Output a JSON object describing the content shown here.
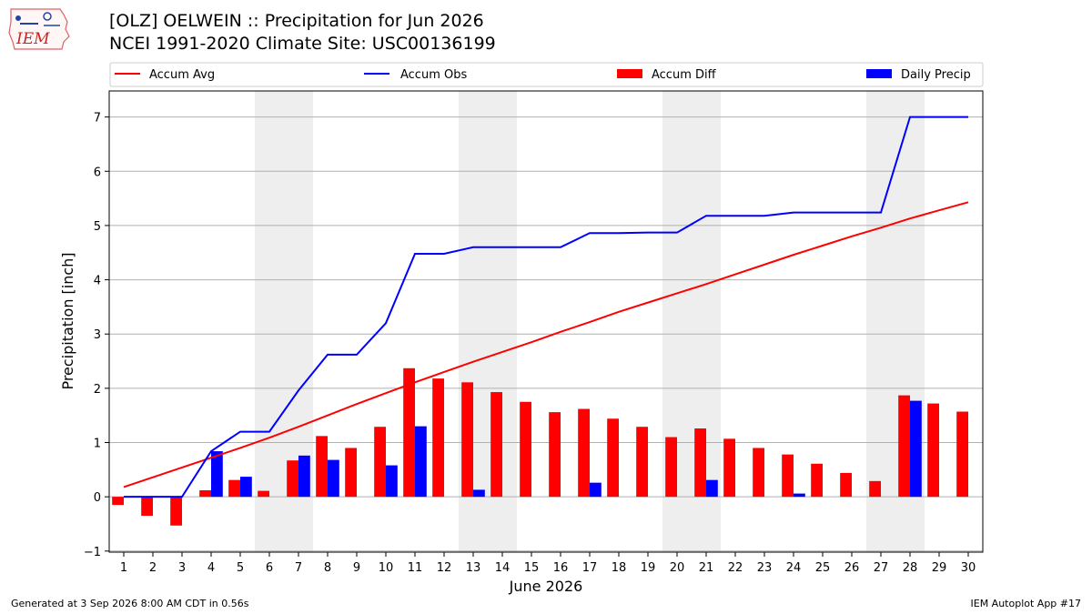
{
  "header": {
    "title_line1": "[OLZ] OELWEIN :: Precipitation for Jun 2026",
    "title_line2": "NCEI 1991-2020 Climate Site: USC00136199"
  },
  "logo": {
    "text": "IEM",
    "icon": "iowa-map-weather-icon"
  },
  "footer": {
    "generated": "Generated at 3 Sep 2026 8:00 AM CDT in 0.56s",
    "app": "IEM Autoplot App #17"
  },
  "colors": {
    "accum_avg": "#ff0000",
    "accum_obs": "#0000ff",
    "accum_diff": "#ff0000",
    "daily_precip": "#0000ff",
    "weekend_band": "#eeeeee",
    "grid": "#b0b0b0"
  },
  "chart_data": {
    "type": "bar",
    "title": "[OLZ] OELWEIN :: Precipitation for Jun 2026",
    "xlabel": "June 2026",
    "ylabel": "Precipitation [inch]",
    "ylim": [
      -1.02,
      7.48
    ],
    "yticks": [
      -1,
      0,
      1,
      2,
      3,
      4,
      5,
      6,
      7
    ],
    "ytick_labels": [
      "−1",
      "0",
      "1",
      "2",
      "3",
      "4",
      "5",
      "6",
      "7"
    ],
    "x": [
      1,
      2,
      3,
      4,
      5,
      6,
      7,
      8,
      9,
      10,
      11,
      12,
      13,
      14,
      15,
      16,
      17,
      18,
      19,
      20,
      21,
      22,
      23,
      24,
      25,
      26,
      27,
      28,
      29,
      30
    ],
    "grid": "horizontal",
    "legend_placement": "top",
    "weekend_bands": [
      [
        6,
        7
      ],
      [
        13,
        14
      ],
      [
        20,
        21
      ],
      [
        27,
        28
      ]
    ],
    "series": [
      {
        "name": "Accum Avg",
        "kind": "line",
        "values": [
          0.18,
          0.36,
          0.54,
          0.72,
          0.9,
          1.09,
          1.29,
          1.5,
          1.71,
          1.91,
          2.11,
          2.3,
          2.49,
          2.67,
          2.85,
          3.04,
          3.22,
          3.41,
          3.58,
          3.75,
          3.92,
          4.1,
          4.28,
          4.46,
          4.63,
          4.8,
          4.96,
          5.13,
          5.28,
          5.43
        ]
      },
      {
        "name": "Accum Obs",
        "kind": "line",
        "values": [
          0.0,
          0.0,
          0.0,
          0.84,
          1.2,
          1.2,
          1.96,
          2.62,
          2.62,
          3.2,
          4.48,
          4.48,
          4.6,
          4.6,
          4.6,
          4.6,
          4.86,
          4.86,
          4.87,
          4.87,
          5.18,
          5.18,
          5.18,
          5.24,
          5.24,
          5.24,
          5.24,
          7.0,
          7.0,
          7.0
        ]
      },
      {
        "name": "Accum Diff",
        "kind": "bar",
        "values": [
          -0.15,
          -0.35,
          -0.53,
          0.12,
          0.31,
          0.11,
          0.67,
          1.12,
          0.9,
          1.29,
          2.37,
          2.18,
          2.11,
          1.93,
          1.75,
          1.56,
          1.62,
          1.44,
          1.29,
          1.1,
          1.26,
          1.07,
          0.9,
          0.78,
          0.61,
          0.44,
          0.29,
          1.87,
          1.72,
          1.57
        ]
      },
      {
        "name": "Daily Precip",
        "kind": "bar",
        "values": [
          0,
          0,
          0,
          0.84,
          0.37,
          0,
          0.76,
          0.68,
          0,
          0.58,
          1.3,
          0,
          0.13,
          0,
          0,
          0,
          0.26,
          0,
          0,
          0,
          0.31,
          0,
          0,
          0.06,
          0,
          0,
          0,
          1.77,
          0,
          0
        ]
      }
    ]
  }
}
